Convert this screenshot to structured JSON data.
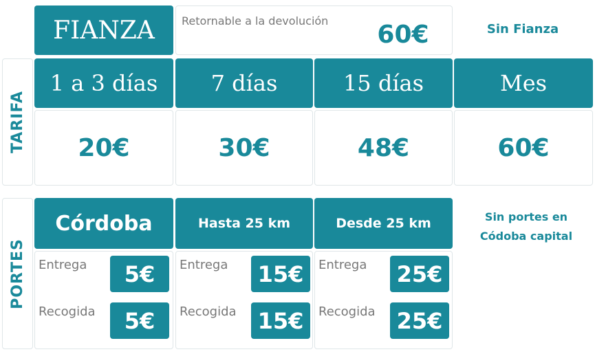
{
  "fianza": {
    "title": "FIANZA",
    "note": "Retornable a la devolución",
    "amount": "60€",
    "alternative": "Sin Fianza"
  },
  "tarifa": {
    "label": "TARIFA",
    "columns": [
      {
        "period": "1 a 3 días",
        "price": "20€"
      },
      {
        "period": "7 días",
        "price": "30€"
      },
      {
        "period": "15 días",
        "price": "48€"
      },
      {
        "period": "Mes",
        "price": "60€"
      }
    ]
  },
  "portes": {
    "label": "PORTES",
    "note": "Sin portes en Códoba capital",
    "columns": [
      {
        "zone": "Córdoba",
        "rows": [
          {
            "label": "Entrega",
            "price": "5€"
          },
          {
            "label": "Recogida",
            "price": "5€"
          }
        ]
      },
      {
        "zone": "Hasta 25 km",
        "rows": [
          {
            "label": "Entrega",
            "price": "15€"
          },
          {
            "label": "Recogida",
            "price": "15€"
          }
        ]
      },
      {
        "zone": "Desde 25 km",
        "rows": [
          {
            "label": "Entrega",
            "price": "25€"
          },
          {
            "label": "Recogida",
            "price": "25€"
          }
        ]
      }
    ]
  }
}
